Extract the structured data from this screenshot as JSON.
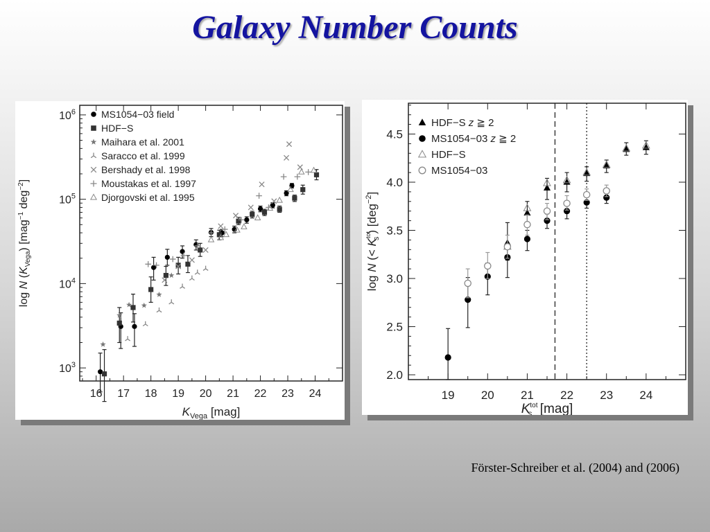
{
  "slide": {
    "title": "Galaxy Number Counts",
    "citation": "Förster-Schreiber et al. (2004) and (2006)",
    "colors": {
      "title": "#1414a0",
      "background_top": "#ffffff",
      "background_bottom": "#a9a9a9"
    }
  },
  "chart_data": [
    {
      "type": "scatter",
      "ylabel_parts": {
        "pre": "log ",
        "N": "N",
        "open": " (",
        "K": "K",
        "sub": "Vega",
        "close": ")  [mag",
        "exp1": "−1",
        "mid": " deg",
        "exp2": "−2",
        "end": "]"
      },
      "xlabel_parts": {
        "K": "K",
        "sub": "Vega",
        "unit": "  [mag]"
      },
      "xlim": [
        15.4,
        25.0
      ],
      "x_ticks": [
        "16",
        "17",
        "18",
        "19",
        "20",
        "21",
        "22",
        "23",
        "24"
      ],
      "y_log": true,
      "ylim": [
        700,
        1300000
      ],
      "y_ticks": [
        {
          "base": "10",
          "exp": "3",
          "value": 1000
        },
        {
          "base": "10",
          "exp": "4",
          "value": 10000
        },
        {
          "base": "10",
          "exp": "5",
          "value": 100000
        },
        {
          "base": "10",
          "exp": "6",
          "value": 1000000
        }
      ],
      "legend_position": "top-left",
      "series": [
        {
          "name": "MS1054−03 field",
          "marker": "circle",
          "color": "#000000",
          "points": [
            [
              16.15,
              900,
              520,
              1500
            ],
            [
              16.9,
              3100,
              1700,
              4500
            ],
            [
              17.4,
              3100,
              1800,
              4400
            ],
            [
              18.1,
              15500,
              11000,
              20500
            ],
            [
              18.6,
              20500,
              16500,
              25500
            ],
            [
              19.15,
              24000,
              20000,
              28000
            ],
            [
              19.65,
              29000,
              25000,
              33000
            ],
            [
              20.2,
              40500,
              36000,
              45000
            ],
            [
              20.6,
              40000,
              36000,
              44000
            ],
            [
              21.05,
              44000,
              40000,
              48000
            ],
            [
              21.5,
              57000,
              52000,
              62000
            ],
            [
              22.0,
              77000,
              71000,
              83000
            ],
            [
              22.45,
              85000,
              79000,
              91000
            ],
            [
              22.95,
              118000,
              110000,
              126000
            ],
            [
              23.15,
              145000,
              136000,
              154000
            ]
          ]
        },
        {
          "name": "HDF−S",
          "marker": "square",
          "color": "#333333",
          "points": [
            [
              16.3,
              850,
              400,
              1650
            ],
            [
              16.85,
              3400,
              2000,
              5200
            ],
            [
              17.35,
              5200,
              3500,
              7500
            ],
            [
              18.0,
              8500,
              6000,
              12000
            ],
            [
              18.55,
              12500,
              9500,
              16000
            ],
            [
              19.0,
              16500,
              13000,
              20500
            ],
            [
              19.35,
              17000,
              13500,
              21500
            ],
            [
              19.8,
              25000,
              21000,
              30000
            ],
            [
              20.5,
              38000,
              33000,
              43000
            ],
            [
              21.2,
              55000,
              50000,
              61000
            ],
            [
              21.7,
              66000,
              60000,
              72000
            ],
            [
              22.15,
              70000,
              64000,
              76000
            ],
            [
              22.7,
              76000,
              70000,
              83000
            ],
            [
              23.25,
              103000,
              94000,
              112000
            ],
            [
              23.55,
              130000,
              115000,
              147000
            ],
            [
              24.05,
              195000,
              170000,
              225000
            ]
          ]
        },
        {
          "name": "Maihara et al. 2001",
          "marker": "star",
          "color": "#777777",
          "points": [
            [
              16.25,
              1900
            ],
            [
              16.85,
              4200
            ],
            [
              17.2,
              5600
            ],
            [
              17.75,
              5500
            ],
            [
              18.3,
              7400
            ],
            [
              18.75,
              12500
            ]
          ]
        },
        {
          "name": "Saracco et al. 1999",
          "marker": "tri",
          "color": "#888888",
          "points": [
            [
              17.15,
              2200
            ],
            [
              17.8,
              3300
            ],
            [
              18.3,
              4800
            ],
            [
              18.75,
              6000
            ],
            [
              19.15,
              9200
            ],
            [
              19.5,
              11500
            ],
            [
              19.7,
              13500
            ],
            [
              20.0,
              15000
            ]
          ]
        },
        {
          "name": "Bershady et al. 1998",
          "marker": "cross",
          "color": "#888888",
          "points": [
            [
              18.5,
              11000
            ],
            [
              19.0,
              16000
            ],
            [
              19.5,
              19000
            ],
            [
              20.0,
              25000
            ],
            [
              20.55,
              48000
            ],
            [
              21.1,
              64000
            ],
            [
              21.65,
              80000
            ],
            [
              22.05,
              150000
            ],
            [
              22.5,
              95000
            ],
            [
              22.95,
              310000
            ],
            [
              23.45,
              240000
            ],
            [
              23.05,
              450000
            ]
          ]
        },
        {
          "name": "Moustakas et al. 1997",
          "marker": "plus",
          "color": "#888888",
          "points": [
            [
              17.9,
              17000
            ],
            [
              18.2,
              16500
            ],
            [
              18.8,
              19500
            ],
            [
              19.2,
              21500
            ],
            [
              19.7,
              28000
            ],
            [
              20.2,
              40000
            ],
            [
              20.7,
              44000
            ],
            [
              21.3,
              57000
            ],
            [
              21.95,
              110000
            ],
            [
              22.3,
              80000
            ],
            [
              22.85,
              185000
            ],
            [
              23.35,
              185000
            ],
            [
              23.75,
              210000
            ]
          ]
        },
        {
          "name": "Djorgovski et al. 1995",
          "marker": "triangle-open",
          "color": "#888888",
          "points": [
            [
              20.2,
              33000
            ],
            [
              20.55,
              35000
            ],
            [
              20.75,
              38000
            ],
            [
              21.15,
              43000
            ],
            [
              21.4,
              47000
            ],
            [
              21.9,
              60000
            ],
            [
              22.35,
              78000
            ],
            [
              22.7,
              97000
            ],
            [
              23.1,
              130000
            ],
            [
              23.5,
              210000
            ],
            [
              23.95,
              220000
            ]
          ]
        }
      ]
    },
    {
      "type": "scatter",
      "ylabel_parts": {
        "pre": "log ",
        "N": "N",
        "open": " (< ",
        "K": "K",
        "sub": "s",
        "sup": "tot",
        "close": ")  [deg",
        "exp": "−2",
        "end": "]"
      },
      "xlabel_parts": {
        "K": "K",
        "sub": "s",
        "sup": "tot",
        "unit": "  [mag]"
      },
      "xlim": [
        18.0,
        25.0
      ],
      "ylim": [
        1.95,
        4.82
      ],
      "x_ticks": [
        "19",
        "20",
        "21",
        "22",
        "23",
        "24"
      ],
      "y_ticks": [
        "2.0",
        "2.5",
        "3.0",
        "3.5",
        "4.0",
        "4.5"
      ],
      "vlines": [
        {
          "x": 21.7,
          "style": "dashed"
        },
        {
          "x": 22.5,
          "style": "dotted"
        }
      ],
      "legend_position": "top-left",
      "legend": [
        {
          "marker": "triangle-filled",
          "text": "HDF−S ",
          "italic": "z",
          "rest": " ≧ 2"
        },
        {
          "marker": "circle-filled",
          "text": "MS1054−03 ",
          "italic": "z",
          "rest": " ≧ 2"
        },
        {
          "marker": "triangle-open",
          "text": "HDF−S",
          "italic": "",
          "rest": ""
        },
        {
          "marker": "circle-open",
          "text": "MS1054−03",
          "italic": "",
          "rest": ""
        }
      ],
      "series": [
        {
          "name": "HDF−S z ≧ 2",
          "marker": "triangle-filled",
          "color": "#000000",
          "points": [
            [
              20.5,
              3.37,
              3.19,
              3.58
            ],
            [
              21.0,
              3.68,
              3.56,
              3.8
            ],
            [
              21.5,
              3.94,
              3.82,
              4.04
            ],
            [
              22.0,
              4.0,
              3.9,
              4.1
            ],
            [
              22.5,
              4.09,
              4.01,
              4.16
            ],
            [
              23.0,
              4.17,
              4.1,
              4.23
            ],
            [
              23.5,
              4.34,
              4.28,
              4.41
            ],
            [
              24.0,
              4.36,
              4.29,
              4.43
            ]
          ]
        },
        {
          "name": "MS1054−03 z ≧ 2",
          "marker": "circle-filled",
          "color": "#000000",
          "points": [
            [
              19.0,
              2.18,
              1.95,
              2.48
            ],
            [
              19.5,
              2.78,
              2.49,
              3.01
            ],
            [
              20.0,
              3.02,
              2.83,
              3.16
            ],
            [
              20.5,
              3.22,
              3.01,
              3.34
            ],
            [
              21.0,
              3.41,
              3.29,
              3.5
            ],
            [
              21.5,
              3.6,
              3.52,
              3.67
            ],
            [
              22.0,
              3.7,
              3.62,
              3.77
            ],
            [
              22.5,
              3.79,
              3.73,
              3.86
            ],
            [
              23.0,
              3.84,
              3.78,
              3.9
            ]
          ]
        },
        {
          "name": "HDF−S",
          "marker": "triangle-open",
          "color": "#888888",
          "points": [
            [
              20.5,
              3.33
            ],
            [
              21.0,
              3.73
            ],
            [
              21.5,
              3.99
            ],
            [
              22.0,
              4.02
            ],
            [
              22.5,
              4.1
            ],
            [
              23.0,
              4.18
            ],
            [
              23.5,
              4.35
            ],
            [
              24.0,
              4.38
            ]
          ]
        },
        {
          "name": "MS1054−03",
          "marker": "circle-open",
          "color": "#888888",
          "points": [
            [
              19.5,
              2.95,
              2.8,
              3.1
            ],
            [
              20.0,
              3.13,
              3.0,
              3.27
            ],
            [
              20.5,
              3.33,
              3.21,
              3.45
            ],
            [
              21.0,
              3.56,
              3.45,
              3.66
            ],
            [
              21.5,
              3.7,
              3.61,
              3.78
            ],
            [
              22.0,
              3.78,
              3.71,
              3.86
            ],
            [
              22.5,
              3.87,
              3.81,
              3.93
            ],
            [
              23.0,
              3.91,
              3.85,
              3.97
            ]
          ]
        }
      ]
    }
  ]
}
